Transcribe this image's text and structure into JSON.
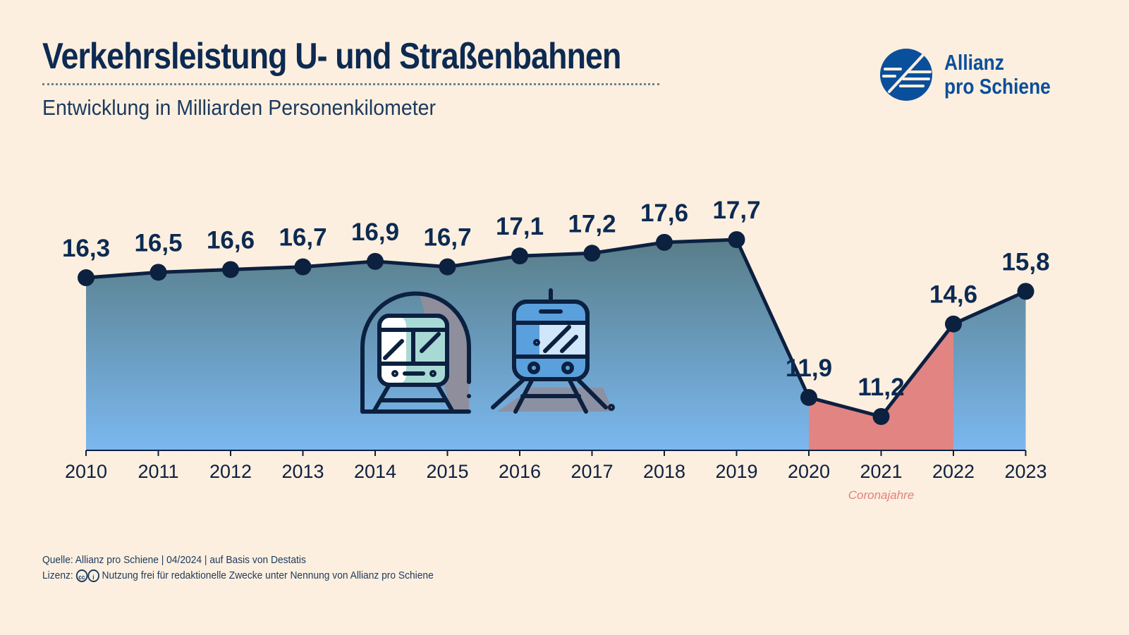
{
  "header": {
    "title": "Verkehrsleistung U- und Straßenbahnen",
    "subtitle": "Entwicklung in Milliarden Personenkilometer"
  },
  "logo": {
    "line1": "Allianz",
    "line2": "pro Schiene",
    "icon": "allianz-pro-schiene-logo-icon"
  },
  "footer": {
    "source": "Quelle: Allianz pro Schiene | 04/2024 | auf Basis von Destatis",
    "license_label": "Lizenz:",
    "license_text": "Nutzung frei für redaktionelle Zwecke unter Nennung von Allianz pro Schiene"
  },
  "chart_data": {
    "type": "area",
    "x": [
      "2010",
      "2011",
      "2012",
      "2013",
      "2014",
      "2015",
      "2016",
      "2017",
      "2018",
      "2019",
      "2020",
      "2021",
      "2022",
      "2023"
    ],
    "values": [
      16.3,
      16.5,
      16.6,
      16.7,
      16.9,
      16.7,
      17.1,
      17.2,
      17.6,
      17.7,
      11.9,
      11.2,
      14.6,
      15.8
    ],
    "value_labels": [
      "16,3",
      "16,5",
      "16,6",
      "16,7",
      "16,9",
      "16,7",
      "17,1",
      "17,2",
      "17,6",
      "17,7",
      "11,9",
      "11,2",
      "14,6",
      "15,8"
    ],
    "highlight_range": [
      "2020",
      "2022"
    ],
    "highlight_label": "Coronajahre",
    "colors": {
      "line": "#0c2040",
      "area_top": "#587d88",
      "area_bottom": "#7bb8f0",
      "highlight": "#e28482",
      "highlight_text": "#e0827c"
    },
    "icons": [
      "subway-tunnel-icon",
      "tram-icon"
    ]
  }
}
